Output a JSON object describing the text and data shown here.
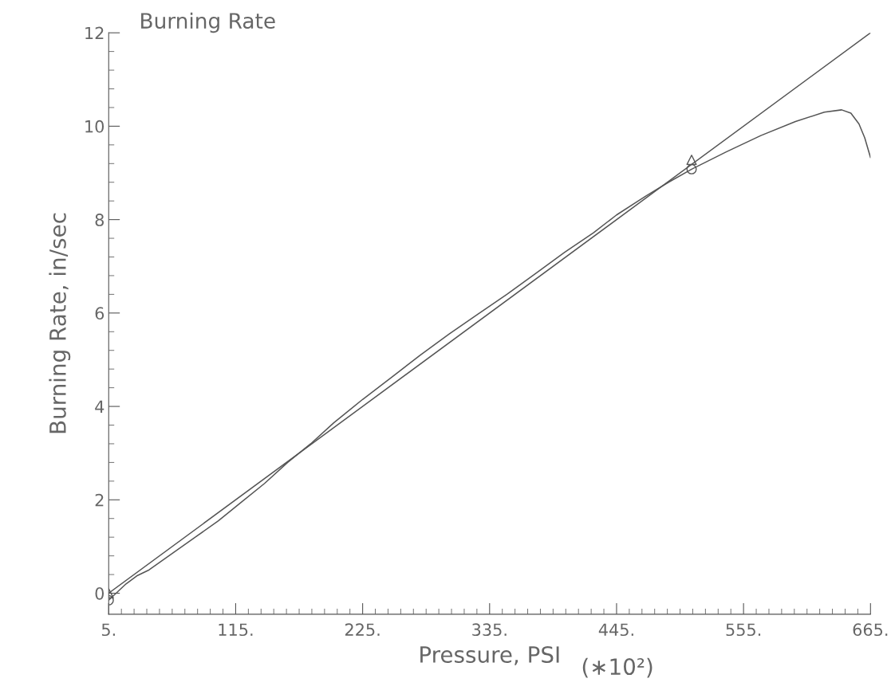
{
  "chart_data": {
    "type": "line",
    "title": "Burning Rate",
    "xlabel": "Pressure, PSI",
    "ylabel": "Burning Rate, in/sec",
    "annotations": [
      "(∗10²)"
    ],
    "xlim": [
      5,
      665
    ],
    "ylim": [
      -0.45,
      12
    ],
    "xticks": [
      {
        "value": 5,
        "label": "5."
      },
      {
        "value": 115,
        "label": "115."
      },
      {
        "value": 225,
        "label": "225."
      },
      {
        "value": 335,
        "label": "335."
      },
      {
        "value": 445,
        "label": "445."
      },
      {
        "value": 555,
        "label": "555."
      },
      {
        "value": 665,
        "label": "665."
      }
    ],
    "yticks": [
      0,
      2,
      4,
      6,
      8,
      10,
      12
    ],
    "grid": false,
    "legend": false,
    "series": [
      {
        "color": "#555555",
        "x": [
          5,
          665
        ],
        "values": [
          0.0,
          12.0
        ]
      },
      {
        "color": "#555555",
        "x": [
          5,
          20,
          30,
          40,
          60,
          80,
          100,
          120,
          140,
          160,
          180,
          200,
          225,
          250,
          275,
          300,
          325,
          350,
          375,
          400,
          425,
          445,
          470,
          490,
          510,
          540,
          570,
          600,
          625,
          640,
          648,
          655,
          660,
          665
        ],
        "values": [
          -0.15,
          0.2,
          0.38,
          0.5,
          0.85,
          1.2,
          1.55,
          1.95,
          2.35,
          2.8,
          3.2,
          3.65,
          4.15,
          4.62,
          5.1,
          5.55,
          5.98,
          6.4,
          6.85,
          7.3,
          7.72,
          8.1,
          8.5,
          8.8,
          9.08,
          9.45,
          9.8,
          10.1,
          10.3,
          10.35,
          10.28,
          10.05,
          9.75,
          9.33
        ]
      },
      {
        "type": "scatter",
        "color": "#555555",
        "marker": "triangle",
        "x": [
          5,
          510
        ],
        "values": [
          0.0,
          9.28
        ]
      },
      {
        "type": "scatter",
        "color": "#555555",
        "marker": "circle",
        "x": [
          5,
          510
        ],
        "values": [
          -0.15,
          9.08
        ]
      }
    ]
  }
}
